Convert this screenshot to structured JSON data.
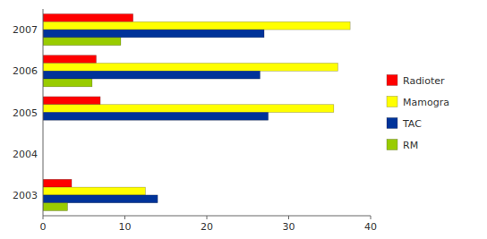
{
  "chart_data": {
    "type": "bar",
    "orientation": "horizontal",
    "categories": [
      "2003",
      "2004",
      "2005",
      "2006",
      "2007"
    ],
    "series": [
      {
        "name": "Radioter",
        "color": "#FF0000",
        "values": [
          3.5,
          0,
          7.0,
          6.5,
          11.0
        ]
      },
      {
        "name": "Mamogra",
        "color": "#FFFF00",
        "values": [
          12.5,
          0,
          35.5,
          36.0,
          37.5
        ]
      },
      {
        "name": "TAC",
        "color": "#003399",
        "values": [
          14.0,
          0,
          27.5,
          26.5,
          27.0
        ]
      },
      {
        "name": "RM",
        "color": "#99CC00",
        "values": [
          3.0,
          0,
          0,
          6.0,
          9.5
        ]
      }
    ],
    "xlim": [
      0,
      40
    ],
    "xticks": [
      0,
      10,
      20,
      30,
      40
    ],
    "grid": false,
    "legend": "right"
  }
}
